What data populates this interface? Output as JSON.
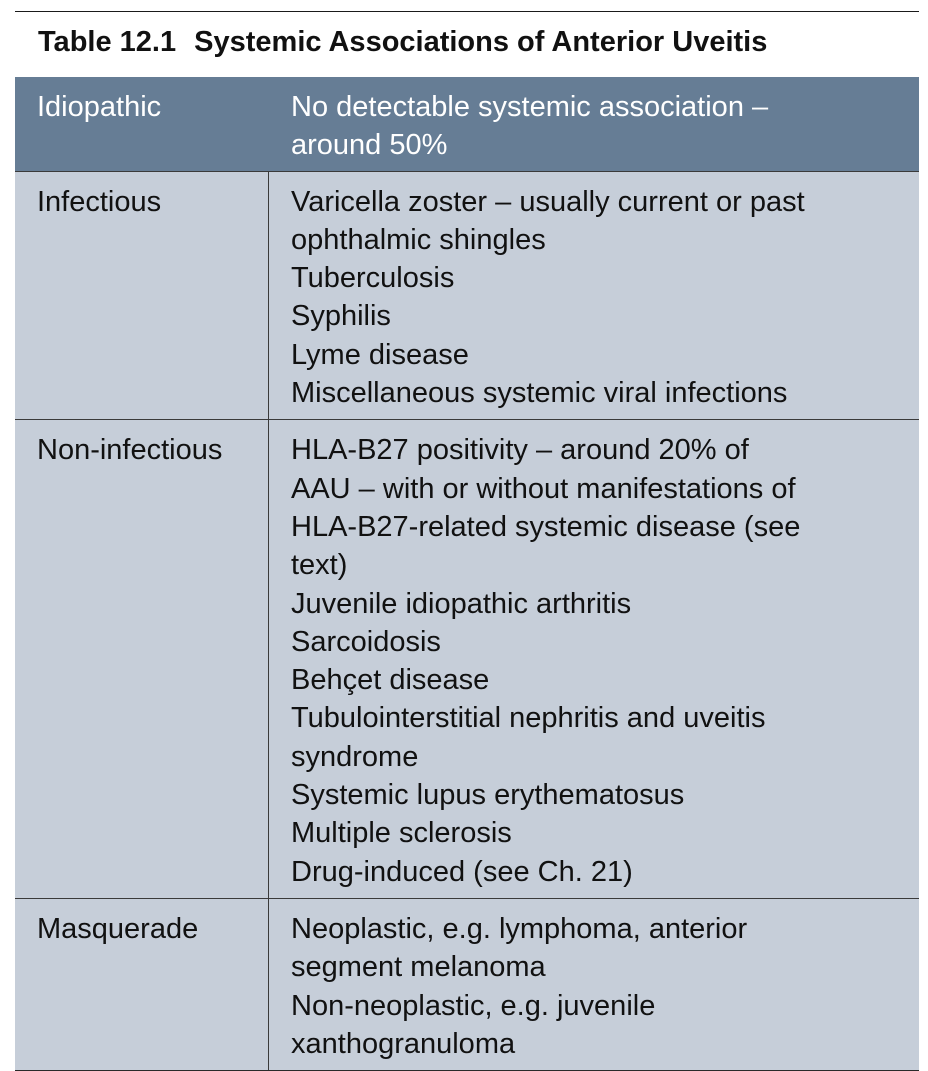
{
  "table": {
    "number": "Table 12.1",
    "title": "Systemic Associations of Anterior Uveitis",
    "header": {
      "label": "Idiopathic",
      "lines": [
        "No detectable systemic association –",
        "around 50%"
      ]
    },
    "rows": [
      {
        "label": "Infectious",
        "lines": [
          "Varicella zoster – usually current or past",
          "ophthalmic shingles",
          "Tuberculosis",
          "Syphilis",
          "Lyme disease",
          "Miscellaneous systemic viral infections"
        ]
      },
      {
        "label": "Non-infectious",
        "lines": [
          "HLA-B27 positivity – around 20% of",
          "AAU – with or without manifestations of",
          "HLA-B27-related systemic disease (see",
          "text)",
          "Juvenile idiopathic arthritis",
          "Sarcoidosis",
          "Behçet disease",
          "Tubulointerstitial nephritis and uveitis",
          "syndrome",
          "Systemic lupus erythematosus",
          "Multiple sclerosis",
          "Drug-induced (see Ch. 21)"
        ]
      },
      {
        "label": "Masquerade",
        "lines": [
          "Neoplastic, e.g. lymphoma, anterior",
          "segment melanoma",
          "Non-neoplastic, e.g. juvenile",
          "xanthogranuloma"
        ]
      }
    ],
    "colors": {
      "header_bg": "#667d95",
      "body_bg": "#c6ced9",
      "header_text": "#ffffff"
    }
  }
}
